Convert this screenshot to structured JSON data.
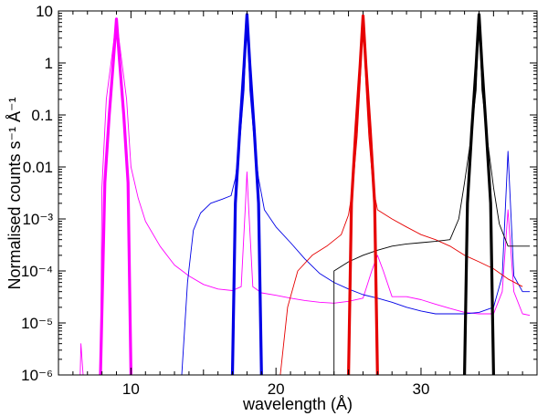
{
  "chart_data": {
    "type": "line",
    "title": "",
    "xlabel": "wavelength (Å)",
    "ylabel": "Normalised counts s⁻¹ Å⁻¹",
    "xscale": "linear",
    "yscale": "log",
    "xlim": [
      5,
      38
    ],
    "ylim": [
      1e-06,
      10
    ],
    "grid": false,
    "x_ticks": [
      {
        "value": 10,
        "label": "10"
      },
      {
        "value": 20,
        "label": "20"
      },
      {
        "value": 30,
        "label": "30"
      }
    ],
    "y_ticks": [
      {
        "value": 1e-06,
        "label": "10⁻⁶"
      },
      {
        "value": 1e-05,
        "label": "10⁻⁵"
      },
      {
        "value": 0.0001,
        "label": "10⁻⁴"
      },
      {
        "value": 0.001,
        "label": "10⁻³"
      },
      {
        "value": 0.01,
        "label": "0.01"
      },
      {
        "value": 0.1,
        "label": "0.1"
      },
      {
        "value": 1,
        "label": "1"
      },
      {
        "value": 10,
        "label": "10"
      }
    ],
    "series": [
      {
        "name": "magenta thin spectrum",
        "color": "#ff00ff",
        "stroke": "thin",
        "points": [
          [
            6.5,
            1e-06
          ],
          [
            6.55,
            4e-06
          ],
          [
            6.7,
            1e-06
          ],
          [
            7.9,
            1e-06
          ],
          [
            8.0,
            0.004
          ],
          [
            8.3,
            0.2
          ],
          [
            8.7,
            1.5
          ],
          [
            9.0,
            7.0
          ],
          [
            9.3,
            1.5
          ],
          [
            9.7,
            0.2
          ],
          [
            10.0,
            0.01
          ],
          [
            10.5,
            0.0025
          ],
          [
            11.0,
            0.0009
          ],
          [
            12.0,
            0.0003
          ],
          [
            13.0,
            0.00013
          ],
          [
            14.0,
            8e-05
          ],
          [
            15.0,
            5.5e-05
          ],
          [
            16.0,
            4.5e-05
          ],
          [
            17.0,
            4.2e-05
          ],
          [
            17.6,
            5e-05
          ],
          [
            17.9,
            0.002
          ],
          [
            18.0,
            0.008
          ],
          [
            18.1,
            0.002
          ],
          [
            18.4,
            5e-05
          ],
          [
            19.0,
            3.8e-05
          ],
          [
            20.0,
            3.4e-05
          ],
          [
            21.0,
            3e-05
          ],
          [
            22.0,
            2.7e-05
          ],
          [
            23.0,
            2.5e-05
          ],
          [
            24.0,
            2.4e-05
          ],
          [
            25.0,
            2.6e-05
          ],
          [
            26.0,
            3e-05
          ],
          [
            26.6,
            0.0001
          ],
          [
            27.0,
            0.0002
          ],
          [
            27.4,
            0.0001
          ],
          [
            28.0,
            3.2e-05
          ],
          [
            29.0,
            3.2e-05
          ],
          [
            30.0,
            2.8e-05
          ],
          [
            31.0,
            2.3e-05
          ],
          [
            32.0,
            1.9e-05
          ],
          [
            33.0,
            1.6e-05
          ],
          [
            34.0,
            1.5e-05
          ],
          [
            35.0,
            1.5e-05
          ],
          [
            35.6,
            4e-05
          ],
          [
            36.0,
            0.0015
          ],
          [
            36.4,
            4e-05
          ],
          [
            37.0,
            1.5e-05
          ],
          [
            37.5,
            1.4e-05
          ]
        ]
      },
      {
        "name": "blue thin spectrum",
        "color": "#0000e6",
        "stroke": "thin",
        "points": [
          [
            13.5,
            1e-06
          ],
          [
            13.9,
            6e-05
          ],
          [
            14.3,
            0.0006
          ],
          [
            14.8,
            0.0013
          ],
          [
            15.5,
            0.002
          ],
          [
            16.3,
            0.0024
          ],
          [
            16.9,
            0.0028
          ],
          [
            17.2,
            0.006
          ],
          [
            17.5,
            0.03
          ],
          [
            17.8,
            0.3
          ],
          [
            18.0,
            8.5
          ],
          [
            18.2,
            0.3
          ],
          [
            18.5,
            0.03
          ],
          [
            18.8,
            0.006
          ],
          [
            19.2,
            0.0015
          ],
          [
            20.0,
            0.0007
          ],
          [
            21.0,
            0.00035
          ],
          [
            22.0,
            0.00017
          ],
          [
            23.0,
            9e-05
          ],
          [
            24.0,
            6e-05
          ],
          [
            25.0,
            4.5e-05
          ],
          [
            26.0,
            3.5e-05
          ],
          [
            27.0,
            3e-05
          ],
          [
            28.0,
            2.5e-05
          ],
          [
            29.0,
            2e-05
          ],
          [
            30.0,
            1.7e-05
          ],
          [
            31.0,
            1.5e-05
          ],
          [
            32.0,
            1.5e-05
          ],
          [
            33.0,
            1.5e-05
          ],
          [
            34.0,
            1.6e-05
          ],
          [
            35.0,
            2e-05
          ],
          [
            35.6,
            8e-05
          ],
          [
            36.0,
            0.02
          ],
          [
            36.4,
            8e-05
          ],
          [
            37.0,
            4e-05
          ],
          [
            37.5,
            4e-05
          ]
        ]
      },
      {
        "name": "red thin spectrum",
        "color": "#e60000",
        "stroke": "thin",
        "points": [
          [
            20.3,
            1e-06
          ],
          [
            20.8,
            2e-05
          ],
          [
            21.5,
            0.0001
          ],
          [
            22.5,
            0.0002
          ],
          [
            23.5,
            0.0003
          ],
          [
            24.5,
            0.0005
          ],
          [
            25.0,
            0.0012
          ],
          [
            25.3,
            0.004
          ],
          [
            25.6,
            0.04
          ],
          [
            25.8,
            0.4
          ],
          [
            26.0,
            8.0
          ],
          [
            26.2,
            0.4
          ],
          [
            26.4,
            0.04
          ],
          [
            26.7,
            0.004
          ],
          [
            27.0,
            0.0015
          ],
          [
            28.0,
            0.001
          ],
          [
            29.0,
            0.0007
          ],
          [
            30.0,
            0.0005
          ],
          [
            31.0,
            0.0004
          ],
          [
            32.0,
            0.0003
          ],
          [
            33.0,
            0.0002
          ],
          [
            34.0,
            0.00015
          ],
          [
            35.0,
            0.00011
          ],
          [
            36.0,
            7e-05
          ],
          [
            37.0,
            5e-05
          ]
        ]
      },
      {
        "name": "black thin spectrum",
        "color": "#000000",
        "stroke": "thin",
        "points": [
          [
            24.0,
            1e-06
          ],
          [
            24.0,
            0.0001
          ],
          [
            25.0,
            0.00015
          ],
          [
            26.0,
            0.0002
          ],
          [
            27.0,
            0.00025
          ],
          [
            28.0,
            0.0003
          ],
          [
            29.0,
            0.00033
          ],
          [
            30.0,
            0.00035
          ],
          [
            31.0,
            0.00037
          ],
          [
            32.0,
            0.0004
          ],
          [
            32.6,
            0.001
          ],
          [
            33.0,
            0.005
          ],
          [
            33.4,
            0.03
          ],
          [
            33.8,
            0.3
          ],
          [
            34.0,
            8.5
          ],
          [
            34.2,
            0.3
          ],
          [
            34.6,
            0.03
          ],
          [
            35.0,
            0.004
          ],
          [
            35.4,
            0.0008
          ],
          [
            36.0,
            0.0003
          ],
          [
            37.0,
            0.0003
          ],
          [
            37.5,
            0.0003
          ]
        ]
      },
      {
        "name": "magenta thick profile",
        "color": "#ff00ff",
        "stroke": "thick",
        "points": [
          [
            7.9,
            1e-06
          ],
          [
            8.2,
            0.005
          ],
          [
            8.5,
            0.1
          ],
          [
            8.8,
            1.2
          ],
          [
            9.0,
            7.0
          ],
          [
            9.2,
            1.2
          ],
          [
            9.5,
            0.1
          ],
          [
            9.8,
            0.005
          ],
          [
            10.0,
            1e-06
          ]
        ]
      },
      {
        "name": "blue thick profile",
        "color": "#0000e6",
        "stroke": "thick",
        "points": [
          [
            17.0,
            1e-06
          ],
          [
            17.2,
            0.002
          ],
          [
            17.5,
            0.05
          ],
          [
            17.8,
            0.9
          ],
          [
            18.0,
            8.5
          ],
          [
            18.2,
            0.9
          ],
          [
            18.5,
            0.05
          ],
          [
            18.8,
            0.002
          ],
          [
            19.0,
            1e-06
          ]
        ]
      },
      {
        "name": "red thick profile",
        "color": "#e60000",
        "stroke": "thick",
        "points": [
          [
            25.0,
            1e-06
          ],
          [
            25.2,
            0.002
          ],
          [
            25.5,
            0.05
          ],
          [
            25.8,
            0.9
          ],
          [
            26.0,
            8.0
          ],
          [
            26.2,
            0.9
          ],
          [
            26.5,
            0.05
          ],
          [
            26.8,
            0.002
          ],
          [
            27.0,
            1e-06
          ]
        ]
      },
      {
        "name": "black thick profile",
        "color": "#000000",
        "stroke": "thick",
        "points": [
          [
            33.0,
            1e-06
          ],
          [
            33.2,
            0.002
          ],
          [
            33.5,
            0.05
          ],
          [
            33.8,
            0.9
          ],
          [
            34.0,
            8.5
          ],
          [
            34.2,
            0.9
          ],
          [
            34.5,
            0.05
          ],
          [
            34.8,
            0.002
          ],
          [
            35.0,
            1e-06
          ]
        ]
      }
    ]
  }
}
